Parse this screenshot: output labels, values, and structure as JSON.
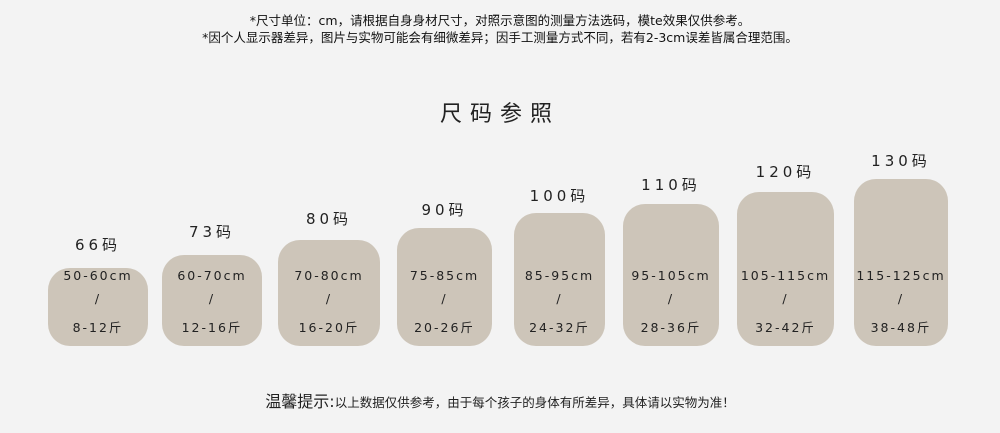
{
  "notes": [
    "*尺寸单位：cm，请根据自身身材尺寸，对照示意图的测量方法选码，模te效果仅供参考。",
    "*因个人显示器差异，图片与实物可能会有细微差异；因手工测量方式不同，若有2-3cm误差皆属合理范围。"
  ],
  "title": "尺码参照",
  "box_color": "#cdc5b9",
  "sizes": [
    {
      "label": "66码",
      "height": "50-60cm",
      "sep": "/",
      "weight": "8-12斤"
    },
    {
      "label": "73码",
      "height": "60-70cm",
      "sep": "/",
      "weight": "12-16斤"
    },
    {
      "label": "80码",
      "height": "70-80cm",
      "sep": "/",
      "weight": "16-20斤"
    },
    {
      "label": "90码",
      "height": "75-85cm",
      "sep": "/",
      "weight": "20-26斤"
    },
    {
      "label": "100码",
      "height": "85-95cm",
      "sep": "/",
      "weight": "24-32斤"
    },
    {
      "label": "110码",
      "height": "95-105cm",
      "sep": "/",
      "weight": "28-36斤"
    },
    {
      "label": "120码",
      "height": "105-115cm",
      "sep": "/",
      "weight": "32-42斤"
    },
    {
      "label": "130码",
      "height": "115-125cm",
      "sep": "/",
      "weight": "38-48斤"
    }
  ],
  "tip": {
    "heading": "温馨提示:",
    "body": "以上数据仅供参考，由于每个孩子的身体有所差异，具体请以实物为准！"
  }
}
